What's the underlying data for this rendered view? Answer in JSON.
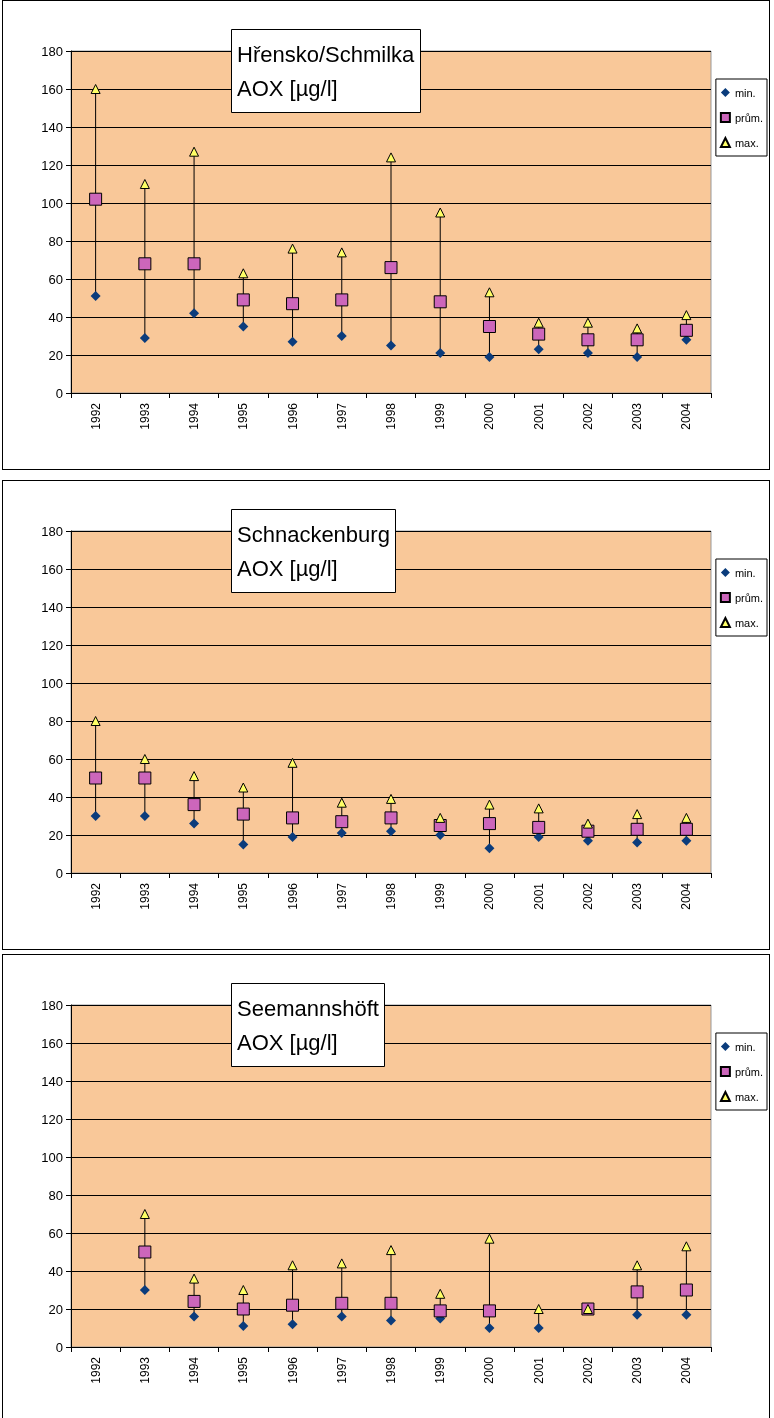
{
  "chart_data": [
    {
      "type": "scatter",
      "title": "Hřensko/Schmilka\nAOX [µg/l]",
      "categories": [
        "1992",
        "1993",
        "1994",
        "1995",
        "1996",
        "1997",
        "1998",
        "1999",
        "2000",
        "2001",
        "2002",
        "2003",
        "2004"
      ],
      "ylim": [
        0,
        180
      ],
      "yticks": [
        0,
        20,
        40,
        60,
        80,
        100,
        120,
        140,
        160,
        180
      ],
      "grid": "y",
      "legend": "right",
      "series": [
        {
          "name": "min.",
          "color": "#0b3c7c",
          "marker": "diamond",
          "values": [
            51,
            29,
            42,
            35,
            27,
            30,
            25,
            21,
            19,
            23,
            21,
            19,
            28
          ]
        },
        {
          "name": "prům.",
          "color": "#cc66bb",
          "marker": "square",
          "values": [
            102,
            68,
            68,
            49,
            47,
            49,
            66,
            48,
            35,
            31,
            28,
            28,
            33
          ]
        },
        {
          "name": "max.",
          "color": "#ffff66",
          "marker": "triangle",
          "values": [
            160,
            110,
            127,
            63,
            76,
            74,
            124,
            95,
            53,
            37,
            37,
            34,
            41
          ]
        }
      ]
    },
    {
      "type": "scatter",
      "title": "Schnackenburg\nAOX [µg/l]",
      "categories": [
        "1992",
        "1993",
        "1994",
        "1995",
        "1996",
        "1997",
        "1998",
        "1999",
        "2000",
        "2001",
        "2002",
        "2003",
        "2004"
      ],
      "ylim": [
        0,
        180
      ],
      "yticks": [
        0,
        20,
        40,
        60,
        80,
        100,
        120,
        140,
        160,
        180
      ],
      "grid": "y",
      "legend": "right",
      "series": [
        {
          "name": "min.",
          "color": "#0b3c7c",
          "marker": "diamond",
          "values": [
            30,
            30,
            26,
            15,
            19,
            21,
            22,
            20,
            13,
            19,
            17,
            16,
            17
          ]
        },
        {
          "name": "prům.",
          "color": "#cc66bb",
          "marker": "square",
          "values": [
            50,
            50,
            36,
            31,
            29,
            27,
            29,
            25,
            26,
            24,
            22,
            23,
            23
          ]
        },
        {
          "name": "max.",
          "color": "#ffff66",
          "marker": "triangle",
          "values": [
            80,
            60,
            51,
            45,
            58,
            37,
            39,
            29,
            36,
            34,
            26,
            31,
            29
          ]
        }
      ]
    },
    {
      "type": "scatter",
      "title": "Seemannshöft\nAOX [µg/l]",
      "categories": [
        "1992",
        "1993",
        "1994",
        "1995",
        "1996",
        "1997",
        "1998",
        "1999",
        "2000",
        "2001",
        "2002",
        "2003",
        "2004"
      ],
      "ylim": [
        0,
        180
      ],
      "yticks": [
        0,
        20,
        40,
        60,
        80,
        100,
        120,
        140,
        160,
        180
      ],
      "grid": "y",
      "legend": "right",
      "series": [
        {
          "name": "min.",
          "color": "#0b3c7c",
          "marker": "diamond",
          "values": [
            null,
            30,
            16,
            11,
            12,
            16,
            14,
            15,
            10,
            10,
            null,
            17,
            17
          ]
        },
        {
          "name": "prům.",
          "color": "#cc66bb",
          "marker": "square",
          "values": [
            null,
            50,
            24,
            20,
            22,
            23,
            23,
            19,
            19,
            null,
            20,
            29,
            30
          ]
        },
        {
          "name": "max.",
          "color": "#ffff66",
          "marker": "triangle",
          "values": [
            null,
            70,
            36,
            30,
            43,
            44,
            51,
            28,
            57,
            20,
            20,
            43,
            53
          ]
        }
      ]
    }
  ]
}
